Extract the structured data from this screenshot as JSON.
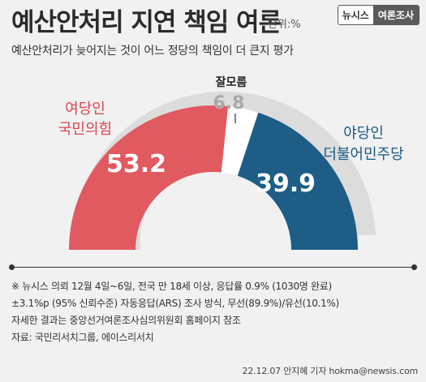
{
  "header": {
    "title": "예산안처리 지연 책임 여론",
    "unit": "단위:%",
    "subtitle": "예산안처리가 늦어지는 것이 어느 정당의 책임이 더 큰지 평가",
    "brand_left": "뉴시스",
    "brand_right": "여론조사"
  },
  "colors": {
    "ruling": "#e05a5f",
    "undecided": "#ffffff",
    "opposition": "#1d5d86",
    "ruling_text": "#d9464c",
    "opposition_text": "#1a5b86",
    "undecided_text": "#a9a9a9"
  },
  "chart_data": {
    "type": "pie",
    "subtype": "semicircle-donut",
    "slices": [
      {
        "group": "여당인",
        "label": "국민의힘",
        "value": 53.2
      },
      {
        "group": "",
        "label": "잘모름",
        "value": 6.8
      },
      {
        "group": "야당인",
        "label": "더불어민주당",
        "value": 39.9
      }
    ]
  },
  "notes": [
    "※ 뉴시스 의뢰 12월 4일~6일, 전국 만 18세 이상, 응답률 0.9% (1030명 완료)",
    "±3.1%p (95% 신뢰수준) 자동응답(ARS) 조사 방식, 무선(89.9%)/유선(10.1%)",
    "자세한 결과는 중앙선거여론조사심의위원회 홈페이지 참조",
    "자료: 국민리서치그룹, 에이스리서치"
  ],
  "credit": "22.12.07 안지혜 기자 hokma@newsis.com"
}
